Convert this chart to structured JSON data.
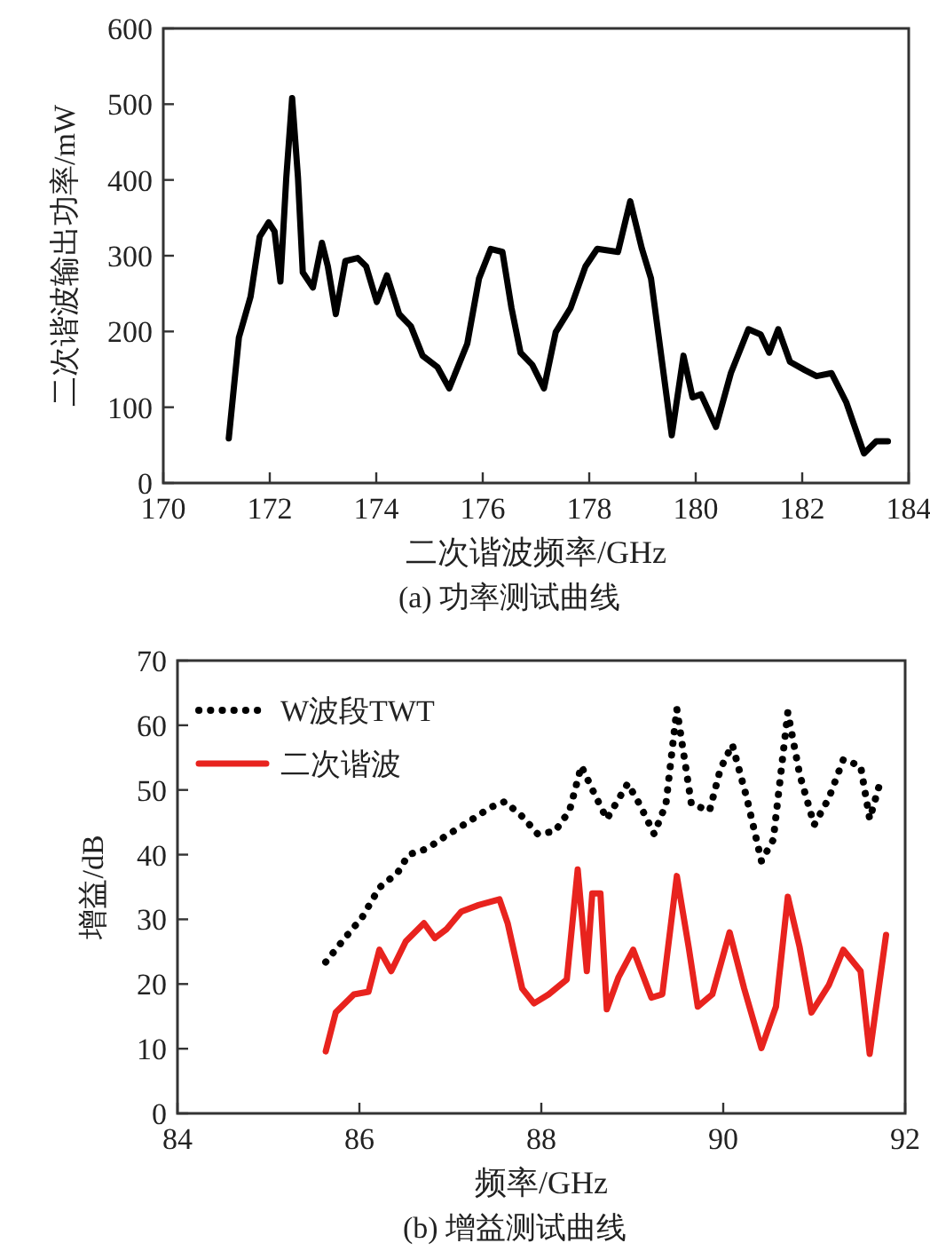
{
  "chart_data": [
    {
      "type": "line",
      "xlabel": "二次谐波频率/GHz",
      "ylabel": "二次谐波输出功率/mW",
      "annotations": [
        "(a) 功率测试曲线"
      ],
      "xlim": [
        170,
        184
      ],
      "ylim": [
        0,
        600
      ],
      "xticks": [
        170,
        172,
        174,
        176,
        178,
        180,
        182,
        184
      ],
      "yticks": [
        0,
        100,
        200,
        300,
        400,
        500,
        600
      ],
      "grid": false,
      "legend": false,
      "marker": "none",
      "series": [
        {
          "color": "#000000",
          "line_style": "solid",
          "x": [
            171.23,
            171.42,
            171.64,
            171.81,
            171.98,
            172.09,
            172.2,
            172.31,
            172.42,
            172.53,
            172.62,
            172.81,
            172.98,
            173.09,
            173.24,
            173.42,
            173.65,
            173.81,
            174.01,
            174.2,
            174.43,
            174.65,
            174.87,
            175.15,
            175.37,
            175.71,
            175.93,
            176.15,
            176.37,
            176.54,
            176.71,
            176.93,
            177.15,
            177.37,
            177.65,
            177.93,
            178.15,
            178.54,
            178.77,
            178.99,
            179.16,
            179.55,
            179.77,
            179.94,
            180.1,
            180.38,
            180.66,
            180.99,
            181.22,
            181.38,
            181.55,
            181.77,
            182.05,
            182.27,
            182.55,
            182.83,
            183.16,
            183.39,
            183.61
          ],
          "values": [
            59,
            192,
            246,
            325,
            344,
            332,
            266,
            403,
            508,
            403,
            278,
            258,
            317,
            286,
            223,
            293,
            297,
            286,
            239,
            274,
            223,
            207,
            168,
            153,
            125,
            184,
            270,
            309,
            305,
            231,
            172,
            156,
            125,
            199,
            231,
            286,
            309,
            305,
            372,
            309,
            270,
            63,
            168,
            113,
            117,
            74,
            145,
            203,
            196,
            172,
            203,
            160,
            149,
            141,
            145,
            106,
            39,
            55,
            55
          ]
        }
      ]
    },
    {
      "type": "line",
      "xlabel": "频率/GHz",
      "ylabel": "增益/dB",
      "annotations": [
        "(b) 增益测试曲线"
      ],
      "xlim": [
        84,
        92
      ],
      "ylim": [
        0,
        70
      ],
      "xticks": [
        84,
        86,
        88,
        90,
        92
      ],
      "yticks": [
        0,
        10,
        20,
        30,
        40,
        50,
        60,
        70
      ],
      "grid": false,
      "legend": "top left",
      "marker": "none",
      "series": [
        {
          "name": "W波段TWT",
          "color": "#000000",
          "line_style": "dotted",
          "x": [
            85.63,
            85.84,
            86.03,
            86.22,
            86.42,
            86.54,
            86.74,
            86.93,
            87.19,
            87.44,
            87.6,
            87.79,
            87.96,
            88.15,
            88.31,
            88.44,
            88.56,
            88.72,
            88.95,
            89.08,
            89.24,
            89.37,
            89.49,
            89.65,
            89.85,
            89.97,
            90.1,
            90.26,
            90.42,
            90.55,
            90.71,
            90.84,
            91.0,
            91.16,
            91.32,
            91.51,
            91.61,
            91.74
          ],
          "values": [
            23.4,
            27.1,
            30.3,
            34.9,
            37.2,
            40.0,
            40.9,
            42.7,
            45.0,
            47.3,
            48.2,
            45.9,
            43.2,
            43.6,
            46.8,
            53.7,
            50.1,
            45.5,
            51.0,
            47.8,
            43.2,
            47.8,
            62.5,
            47.8,
            46.8,
            53.3,
            57.0,
            48.7,
            39.0,
            42.3,
            62.0,
            52.4,
            44.6,
            48.7,
            54.7,
            53.7,
            45.5,
            51.9
          ]
        },
        {
          "name": "二次谐波",
          "color": "#e8231e",
          "line_style": "solid",
          "x": [
            85.63,
            85.74,
            85.94,
            86.1,
            86.22,
            86.35,
            86.51,
            86.71,
            86.83,
            86.96,
            87.12,
            87.31,
            87.54,
            87.63,
            87.79,
            87.92,
            88.08,
            88.28,
            88.4,
            88.5,
            88.56,
            88.65,
            88.72,
            88.85,
            89.01,
            89.21,
            89.33,
            89.49,
            89.62,
            89.72,
            89.88,
            90.07,
            90.23,
            90.42,
            90.58,
            90.71,
            90.84,
            90.97,
            91.16,
            91.32,
            91.51,
            91.61,
            91.79
          ],
          "values": [
            9.6,
            15.6,
            18.4,
            18.8,
            25.3,
            22.0,
            26.6,
            29.4,
            27.1,
            28.5,
            31.2,
            32.2,
            33.1,
            29.4,
            19.3,
            17.0,
            18.4,
            20.7,
            37.7,
            22.0,
            34.0,
            34.0,
            16.1,
            21.1,
            25.3,
            17.9,
            18.4,
            36.7,
            25.7,
            16.5,
            18.4,
            28.0,
            19.3,
            10.1,
            16.5,
            33.5,
            25.7,
            15.6,
            19.8,
            25.3,
            22.0,
            9.2,
            27.6
          ]
        }
      ]
    }
  ]
}
